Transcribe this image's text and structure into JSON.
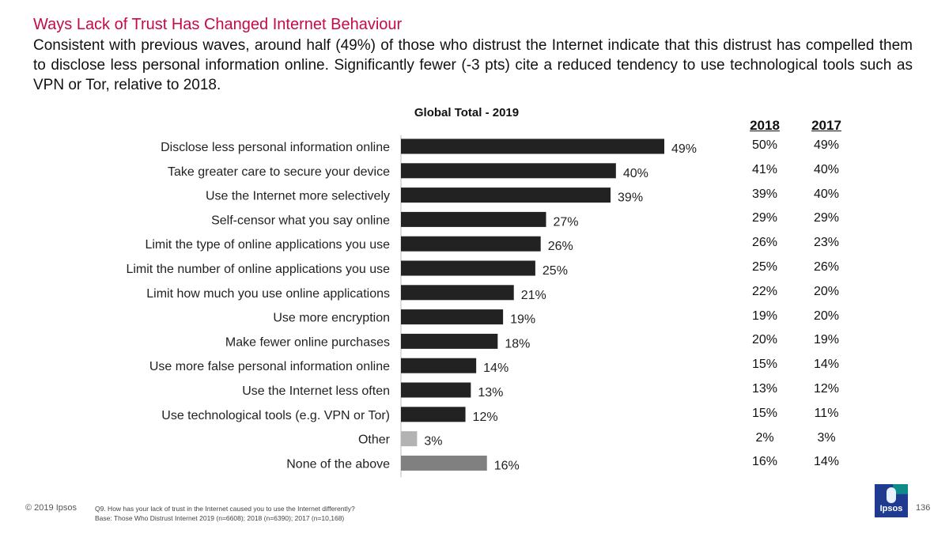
{
  "header": {
    "title": "Ways Lack of Trust Has Changed Internet Behaviour",
    "subtitle": "Consistent with previous waves, around half (49%) of those who distrust the Internet indicate that this distrust has compelled them to disclose less personal information online. Significantly fewer (-3 pts) cite a reduced tendency to use technological tools such as VPN or Tor, relative to 2018."
  },
  "colors": {
    "main_bar": "#222222",
    "other_bar": "#b3b3b3",
    "none_bar": "#808080",
    "title": "#c4094d"
  },
  "chart_data": {
    "type": "bar",
    "orientation": "horizontal",
    "title": "Global Total - 2019",
    "categories": [
      "Disclose less personal information online",
      "Take greater care to secure your device",
      "Use the Internet more selectively",
      "Self-censor what you say online",
      "Limit the type of online applications you use",
      "Limit the number of online applications you use",
      "Limit how much you use online applications",
      "Use more encryption",
      "Make fewer online purchases",
      "Use more false personal information online",
      "Use the Internet less often",
      "Use technological tools (e.g. VPN or Tor)",
      "Other",
      "None of the above"
    ],
    "values": [
      49,
      40,
      39,
      27,
      26,
      25,
      21,
      19,
      18,
      14,
      13,
      12,
      3,
      16
    ],
    "value_labels": [
      "49%",
      "40%",
      "39%",
      "27%",
      "26%",
      "25%",
      "21%",
      "19%",
      "18%",
      "14%",
      "13%",
      "12%",
      "3%",
      "16%"
    ],
    "bar_color_keys": [
      "main_bar",
      "main_bar",
      "main_bar",
      "main_bar",
      "main_bar",
      "main_bar",
      "main_bar",
      "main_bar",
      "main_bar",
      "main_bar",
      "main_bar",
      "main_bar",
      "other_bar",
      "none_bar"
    ],
    "xlim": [
      0,
      55
    ]
  },
  "comparison": {
    "columns": [
      {
        "year": "2018",
        "values": [
          "50%",
          "41%",
          "39%",
          "29%",
          "26%",
          "25%",
          "22%",
          "19%",
          "20%",
          "15%",
          "13%",
          "15%",
          "2%",
          "16%"
        ]
      },
      {
        "year": "2017",
        "values": [
          "49%",
          "40%",
          "40%",
          "29%",
          "23%",
          "26%",
          "20%",
          "20%",
          "19%",
          "14%",
          "12%",
          "11%",
          "3%",
          "14%"
        ]
      }
    ]
  },
  "footer": {
    "copyright": "© 2019 Ipsos",
    "question": "Q9. How has your lack of trust in the Internet caused you to use the Internet differently?",
    "base": "Base: Those Who Distrust Internet 2019 (n=6608); 2018 (n=6390); 2017 (n=10,168)",
    "page_number": "136",
    "logo_text": "Ipsos"
  }
}
